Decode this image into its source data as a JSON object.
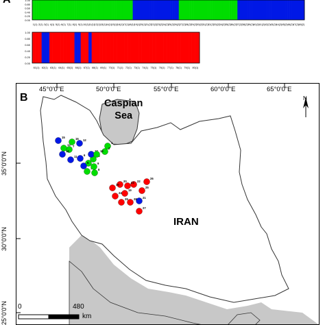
{
  "panel_a": {
    "letter": "A",
    "y_ticks": [
      "1.00",
      "0.80",
      "0.60",
      "0.40",
      "0.20",
      "0.00"
    ],
    "colors": {
      "green": "#00dd00",
      "blue": "#0018e6",
      "red": "#ff0000"
    },
    "top_bar_pattern": "green green green green green green green green green green green green green green green green green green green green green green green green green green green green green green green green green green green green green green green green green green green green green green green green blue blue blue blue blue blue blue blue blue blue blue blue blue blue blue blue blue blue blue blue blue blue green green green green green green green green green green green green green green green green green green green green green green green green green green green green blue blue blue blue blue blue blue blue blue blue blue blue blue blue blue blue blue blue blue blue blue blue blue blue blue blue blue blue blue blue blue blue",
    "bottom_bar_pattern": "red red red red red red blue blue blue blue blue red red red red red red red red red red red red red red red red blue blue blue blue red red red red red blue blue red red red red red red red red red red red red red red red red red red red red red red red red red red red red red red red red red red red red red red red red red red red red red red red red red red red red red red red red red red red red red red red red red red red red red",
    "top_labels_row1": [
      "1(1)",
      "2(1)",
      "3(1)",
      "4(1)",
      "5(1)",
      "6(1)",
      "7(1)",
      "8(1)",
      "9(1)",
      "10(1)",
      "11(1)",
      "12(1)",
      "13(1)",
      "14(1)",
      "15(1)",
      "16(1)",
      "17(1)",
      "18(1)",
      "19(1)",
      "20(1)",
      "21(2)",
      "22(2)",
      "23(2)",
      "24(2)",
      "25(2)",
      "26(2)",
      "27(2)",
      "28(2)",
      "29(2)",
      "30(2)",
      "31(2)",
      "32(2)",
      "33(2)",
      "34(2)",
      "35(2)",
      "36(2)",
      "37(2)",
      "38(2)",
      "39(2)",
      "40(2)",
      "41(2)",
      "42(2)",
      "43(2)",
      "44(2)",
      "45(2)",
      "46(2)",
      "47(2)",
      "48(2)"
    ],
    "bottom_labels_row1": [
      "61(1)",
      "62(1)",
      "63(1)",
      "64(1)",
      "65(1)",
      "66(1)",
      "67(1)",
      "68(1)",
      "69(1)",
      "70(1)",
      "71(1)",
      "72(1)",
      "73(1)",
      "74(1)",
      "75(1)",
      "76(1)",
      "77(1)",
      "78(1)",
      "79(1)",
      "80(1)"
    ]
  },
  "panel_b": {
    "letter": "B",
    "lon_ticks": [
      "45°0'0\"E",
      "50°0'0\"E",
      "55°0'0\"E",
      "60°0'0\"E",
      "65°0'0\"E"
    ],
    "lat_ticks": [
      "35°0'0\"N",
      "30°0'0\"N",
      "25°0'0\"N"
    ],
    "sea_line1": "Caspian",
    "sea_line2": "Sea",
    "country": "IRAN",
    "north": "N",
    "scale_left": "0",
    "scale_right": "480",
    "scale_unit": "km",
    "colors": {
      "land": "#ffffff",
      "water": "#c8c8c8",
      "green": "#00dd00",
      "blue": "#0018e6",
      "red": "#ff0000"
    },
    "sites": [
      {
        "id": "1",
        "color": "green"
      },
      {
        "id": "2",
        "color": "green"
      },
      {
        "id": "3",
        "color": "green"
      },
      {
        "id": "4",
        "color": "green"
      },
      {
        "id": "5",
        "color": "blue"
      },
      {
        "id": "6",
        "color": "blue"
      },
      {
        "id": "7",
        "color": "green"
      },
      {
        "id": "8",
        "color": "green"
      },
      {
        "id": "9",
        "color": "green"
      },
      {
        "id": "10",
        "color": "green"
      },
      {
        "id": "11",
        "color": "blue"
      },
      {
        "id": "12",
        "color": "blue"
      },
      {
        "id": "13",
        "color": "green"
      },
      {
        "id": "14",
        "color": "blue"
      },
      {
        "id": "15",
        "color": "blue"
      },
      {
        "id": "16",
        "color": "green"
      },
      {
        "id": "17",
        "color": "blue"
      },
      {
        "id": "18",
        "color": "green"
      },
      {
        "id": "19",
        "color": "red"
      },
      {
        "id": "20",
        "color": "red"
      },
      {
        "id": "21",
        "color": "blue"
      },
      {
        "id": "22",
        "color": "red"
      },
      {
        "id": "23",
        "color": "red"
      },
      {
        "id": "24",
        "color": "red"
      },
      {
        "id": "25",
        "color": "red"
      },
      {
        "id": "26",
        "color": "red"
      },
      {
        "id": "27",
        "color": "red"
      },
      {
        "id": "28",
        "color": "red"
      },
      {
        "id": "29",
        "color": "red"
      },
      {
        "id": "30",
        "color": "red"
      }
    ]
  }
}
